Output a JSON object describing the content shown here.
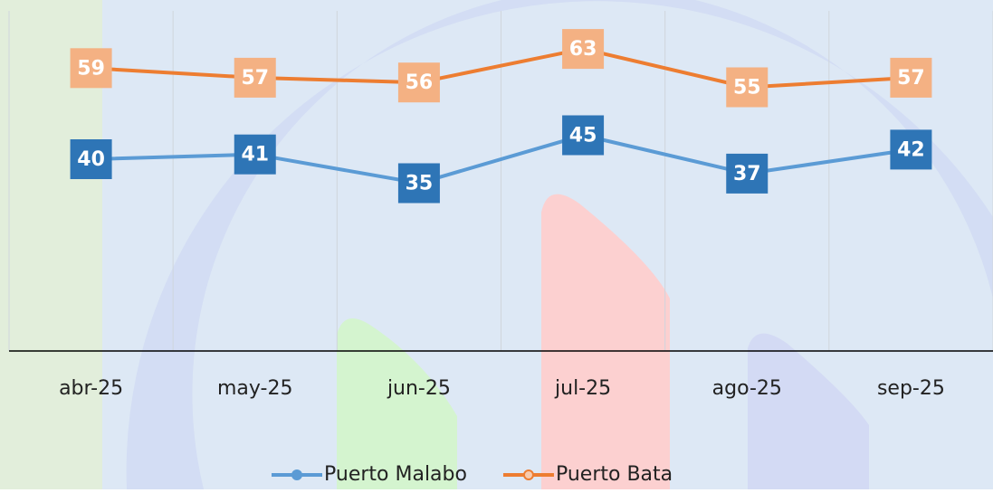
{
  "chart_data": {
    "type": "line",
    "categories": [
      "abr-25",
      "may-25",
      "jun-25",
      "jul-25",
      "ago-25",
      "sep-25"
    ],
    "series": [
      {
        "name": "Puerto Malabo",
        "color": "#5b9bd5",
        "label_color": "#2e75b6",
        "values": [
          40,
          41,
          35,
          45,
          37,
          42
        ]
      },
      {
        "name": "Puerto Bata",
        "color": "#ed7d31",
        "label_color": "#f4b183",
        "values": [
          59,
          57,
          56,
          63,
          55,
          57
        ]
      }
    ],
    "ylim": [
      0,
      70
    ],
    "grid": true,
    "legend": "bottom"
  }
}
